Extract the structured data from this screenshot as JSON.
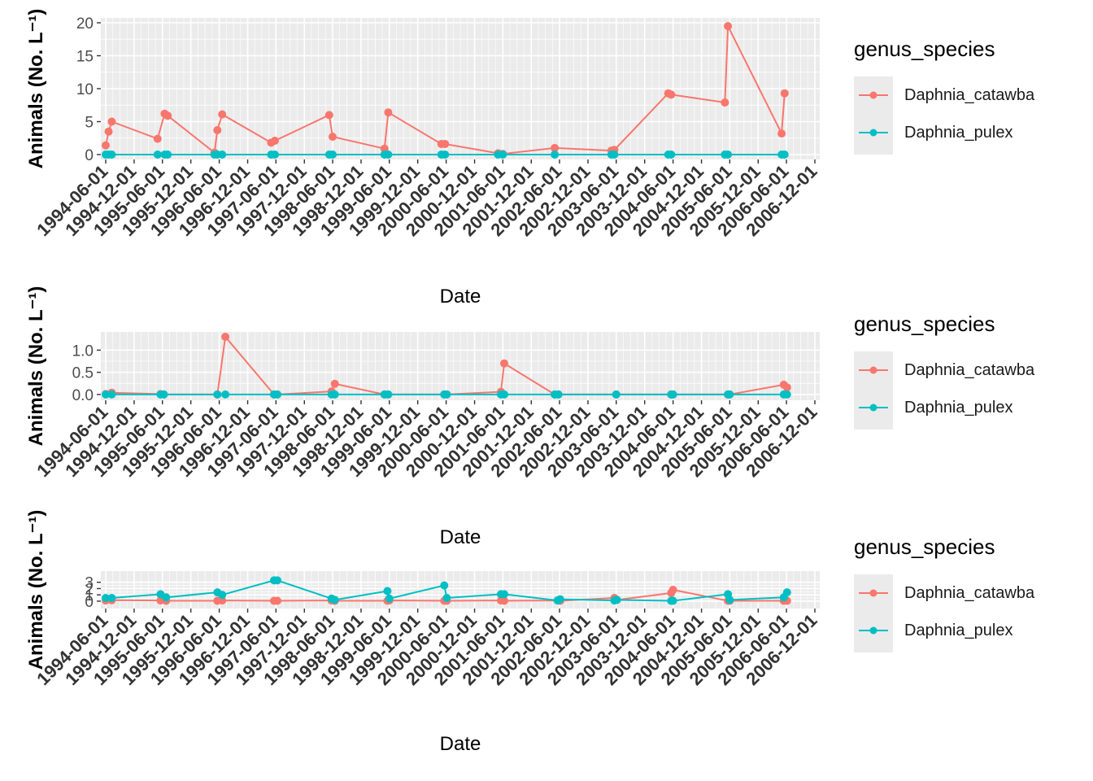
{
  "legend": {
    "title": "genus_species",
    "entries": [
      {
        "name": "Daphnia_catawba",
        "color": "#F8766D"
      },
      {
        "name": "Daphnia_pulex",
        "color": "#00BFC4"
      }
    ]
  },
  "x_tick_labels": [
    "1994-06-01",
    "1994-12-01",
    "1995-06-01",
    "1995-12-01",
    "1996-06-01",
    "1996-12-01",
    "1997-06-01",
    "1997-12-01",
    "1998-06-01",
    "1998-12-01",
    "1999-06-01",
    "1999-12-01",
    "2000-06-01",
    "2000-12-01",
    "2001-06-01",
    "2001-12-01",
    "2002-06-01",
    "2002-12-01",
    "2003-06-01",
    "2003-12-01",
    "2004-06-01",
    "2004-12-01",
    "2005-06-01",
    "2005-12-01",
    "2006-06-01",
    "2006-12-01"
  ],
  "chart_data": [
    {
      "type": "line",
      "xlabel": "Date",
      "ylabel": "Animals (No. L⁻¹)",
      "ylim": [
        0,
        20
      ],
      "yticks": [
        "0",
        "5",
        "10",
        "15",
        "20"
      ],
      "ytick_values": [
        0,
        5,
        10,
        15,
        20
      ],
      "xlim": [
        "1994-06-01",
        "2006-12-01"
      ],
      "grid": true,
      "legend_placement": "right",
      "series": [
        {
          "name": "Daphnia_catawba",
          "color": "#F8766D",
          "x": [
            "1994-06-01",
            "1994-06-20",
            "1994-07-10",
            "1995-05-01",
            "1995-06-15",
            "1995-07-05",
            "1996-05-01",
            "1996-05-20",
            "1996-06-20",
            "1997-05-01",
            "1997-05-25",
            "1998-05-10",
            "1998-06-01",
            "1999-05-01",
            "1999-05-25",
            "2000-05-01",
            "2000-05-25",
            "2001-05-01",
            "2001-06-01",
            "2002-05-01",
            "2003-05-01",
            "2003-05-20",
            "2004-05-01",
            "2004-05-20",
            "2005-05-01",
            "2005-05-20",
            "2006-05-01",
            "2006-05-20"
          ],
          "y": [
            1.4,
            3.5,
            5.0,
            2.4,
            6.2,
            5.9,
            0.3,
            3.7,
            6.1,
            1.8,
            2.1,
            6.0,
            2.7,
            0.9,
            6.4,
            1.6,
            1.6,
            0.2,
            0.1,
            1.0,
            0.6,
            0.7,
            9.3,
            9.1,
            7.9,
            19.5,
            3.2,
            9.3
          ]
        },
        {
          "name": "Daphnia_pulex",
          "color": "#00BFC4",
          "x": [
            "1994-06-01",
            "1994-06-20",
            "1994-07-10",
            "1995-05-01",
            "1995-06-15",
            "1995-07-05",
            "1996-05-01",
            "1996-05-20",
            "1996-06-20",
            "1997-05-01",
            "1997-05-25",
            "1998-05-10",
            "1998-06-01",
            "1999-05-01",
            "1999-05-25",
            "2000-05-01",
            "2000-05-25",
            "2001-05-01",
            "2001-06-01",
            "2002-05-01",
            "2003-05-01",
            "2003-05-20",
            "2004-05-01",
            "2004-05-20",
            "2005-05-01",
            "2005-05-20",
            "2006-05-01",
            "2006-05-20"
          ],
          "y": [
            0,
            0,
            0,
            0,
            0,
            0,
            0,
            0,
            0,
            0,
            0,
            0,
            0,
            0,
            0,
            0,
            0,
            0,
            0,
            0,
            0,
            0,
            0,
            0,
            0,
            0,
            0,
            0
          ]
        }
      ]
    },
    {
      "type": "line",
      "xlabel": "Date",
      "ylabel": "Animals (No. L⁻¹)",
      "ylim": [
        -0.02,
        1.3
      ],
      "yticks": [
        "0.0",
        "0.5",
        "1.0"
      ],
      "ytick_values": [
        0,
        0.5,
        1.0
      ],
      "xlim": [
        "1994-06-01",
        "2006-12-01"
      ],
      "grid": true,
      "legend_placement": "right",
      "series": [
        {
          "name": "Daphnia_catawba",
          "color": "#F8766D",
          "x": [
            "1994-06-01",
            "1994-07-10",
            "1995-05-20",
            "1995-06-10",
            "1996-05-20",
            "1996-07-10",
            "1997-05-20",
            "1997-06-10",
            "1998-05-25",
            "1998-06-15",
            "1999-05-01",
            "1999-05-25",
            "2000-05-20",
            "2000-06-05",
            "2001-05-20",
            "2001-06-10",
            "2002-05-01",
            "2002-05-25",
            "2003-06-01",
            "2004-05-20",
            "2004-06-01",
            "2005-05-20",
            "2005-06-01",
            "2006-05-15",
            "2006-06-05"
          ],
          "y": [
            0.01,
            0.04,
            0.01,
            0.0,
            0.0,
            1.3,
            0.0,
            0.0,
            0.07,
            0.24,
            0.0,
            0.0,
            0.0,
            0.0,
            0.06,
            0.7,
            0.0,
            0.0,
            0.0,
            0.0,
            0.0,
            0.0,
            0.0,
            0.22,
            0.16
          ]
        },
        {
          "name": "Daphnia_pulex",
          "color": "#00BFC4",
          "x": [
            "1994-06-01",
            "1994-07-10",
            "1995-05-20",
            "1995-06-10",
            "1996-05-20",
            "1996-07-10",
            "1997-05-20",
            "1997-06-10",
            "1998-05-25",
            "1998-06-15",
            "1999-05-01",
            "1999-05-25",
            "2000-05-20",
            "2000-06-05",
            "2001-05-20",
            "2001-06-10",
            "2002-05-01",
            "2002-05-25",
            "2003-06-01",
            "2004-05-20",
            "2004-06-01",
            "2005-05-20",
            "2005-06-01",
            "2006-05-15",
            "2006-06-05"
          ],
          "y": [
            0,
            0,
            0,
            0,
            0,
            0,
            0,
            0,
            0,
            0,
            0,
            0,
            0,
            0,
            0,
            0,
            0,
            0,
            0,
            0,
            0,
            0,
            0,
            0,
            0
          ]
        }
      ]
    },
    {
      "type": "line",
      "xlabel": "Date",
      "ylabel": "Animals (No. L⁻¹)",
      "ylim": [
        -0.4,
        4.0
      ],
      "yticks": [
        "0",
        "1",
        "2",
        "3"
      ],
      "ytick_values": [
        0,
        1,
        2,
        3
      ],
      "xlim": [
        "1994-06-01",
        "2006-12-01"
      ],
      "grid": true,
      "legend_placement": "right",
      "series": [
        {
          "name": "Daphnia_catawba",
          "color": "#F8766D",
          "x": [
            "1994-06-01",
            "1994-07-10",
            "1995-05-20",
            "1995-06-25",
            "1996-05-20",
            "1996-06-20",
            "1997-05-20",
            "1997-06-10",
            "1998-05-25",
            "1998-06-15",
            "1999-05-20",
            "1999-06-01",
            "2000-05-20",
            "2000-06-05",
            "2001-05-20",
            "2001-06-10",
            "2002-05-20",
            "2002-06-05",
            "2003-05-20",
            "2003-06-05",
            "2004-05-20",
            "2004-06-01",
            "2005-05-20",
            "2005-06-01",
            "2006-05-15",
            "2006-06-05"
          ],
          "y": [
            0.1,
            0.15,
            0.1,
            0.05,
            0.05,
            0.1,
            0.05,
            0.05,
            0.1,
            0.05,
            0.05,
            0.1,
            0.05,
            0.05,
            0.1,
            0.05,
            0.1,
            0.05,
            0.5,
            0.2,
            1.3,
            1.8,
            0.05,
            0.05,
            0.05,
            0.05
          ]
        },
        {
          "name": "Daphnia_pulex",
          "color": "#00BFC4",
          "x": [
            "1994-06-01",
            "1994-07-10",
            "1995-05-20",
            "1995-06-25",
            "1996-05-20",
            "1996-06-20",
            "1997-05-20",
            "1997-06-10",
            "1998-05-25",
            "1998-06-15",
            "1999-05-20",
            "1999-06-01",
            "2000-05-20",
            "2000-06-05",
            "2001-05-20",
            "2001-06-10",
            "2002-05-20",
            "2002-06-05",
            "2003-05-20",
            "2003-06-05",
            "2004-05-20",
            "2004-06-01",
            "2005-05-20",
            "2005-06-01",
            "2006-05-15",
            "2006-06-05"
          ],
          "y": [
            0.5,
            0.5,
            1.1,
            0.6,
            1.4,
            1.0,
            3.3,
            3.3,
            0.4,
            0.2,
            1.6,
            0.4,
            2.5,
            0.5,
            1.1,
            1.1,
            0.1,
            0.3,
            0.1,
            0.2,
            0.05,
            0.05,
            1.1,
            0.2,
            0.6,
            1.4
          ]
        }
      ]
    }
  ]
}
